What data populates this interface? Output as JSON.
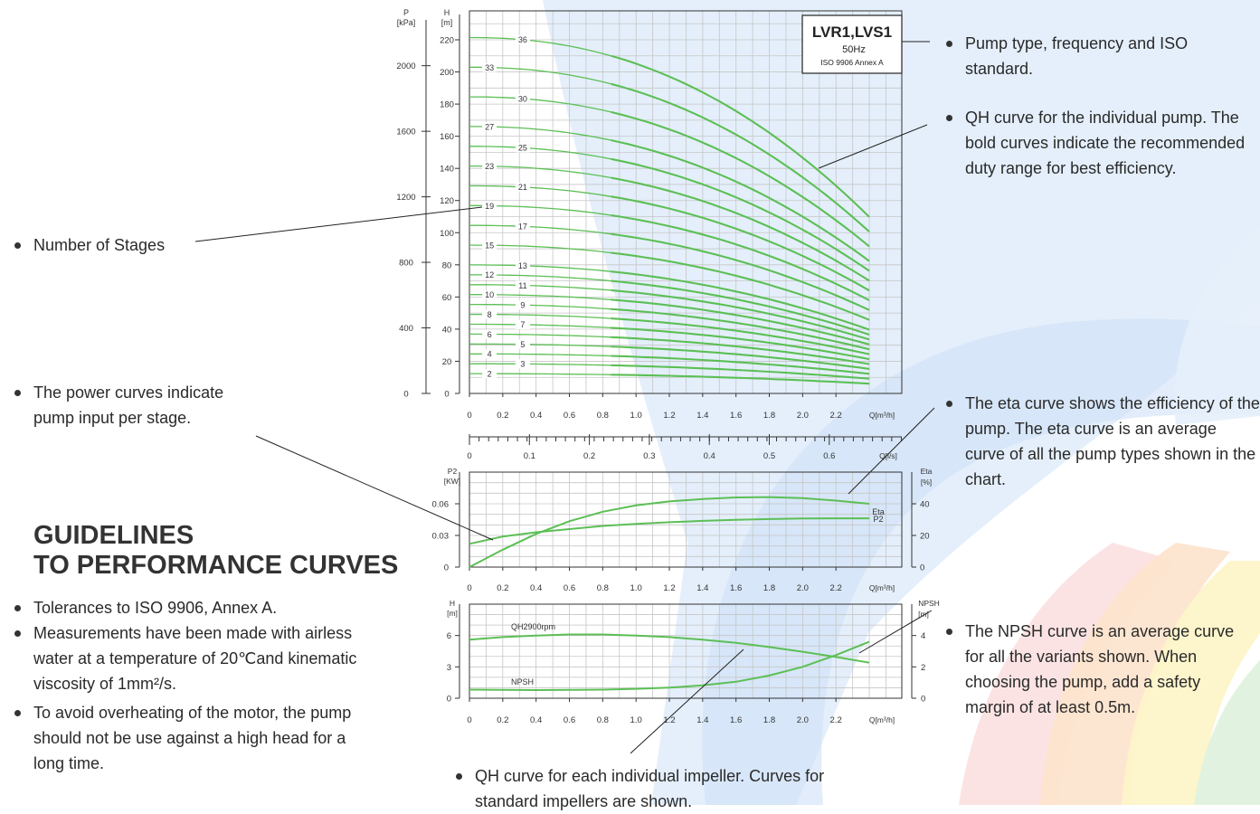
{
  "colors": {
    "curve": "#5cbf55",
    "grid": "#c6c6c6",
    "axis": "#333333",
    "leader": "#222222",
    "bg_blue": "#dbe9fa",
    "bg_orange": "#fde3cc",
    "bg_yellow": "#fdf4c8",
    "bg_green": "#dff2de",
    "bg_pink": "#fbdcdc"
  },
  "chart_data": [
    {
      "type": "line",
      "title": "LVR1,LVS1",
      "subtitle_freq": "50Hz",
      "subtitle_std": "ISO 9906 Annex A",
      "x_label": "Q[m³/h]",
      "x_ticks": [
        "0",
        "0.2",
        "0.4",
        "0.6",
        "0.8",
        "1.0",
        "1.2",
        "1.4",
        "1.6",
        "1.8",
        "2.0",
        "2.2"
      ],
      "xlim": [
        0,
        2.6
      ],
      "y_label_top": "H",
      "y_unit_top": "[m]",
      "y_ticks": [
        "0",
        "20",
        "40",
        "60",
        "80",
        "100",
        "120",
        "140",
        "160",
        "180",
        "200",
        "220"
      ],
      "ylim": [
        0,
        235
      ],
      "p_label": "P",
      "p_unit": "[kPa]",
      "p_ticks": [
        "0",
        "400",
        "800",
        "1200",
        "1600",
        "2000"
      ],
      "secondary_x_ticks": [
        "0",
        "0.1",
        "0.2",
        "0.3",
        "0.4",
        "0.5",
        "0.6"
      ],
      "secondary_x_label": "Q[l/s]",
      "model": {
        "shutoff_head_per_stage": 6.15,
        "q_max": 2.4,
        "head_at_qmax_per_stage": 3.05
      },
      "stages": [
        36,
        33,
        30,
        27,
        25,
        23,
        21,
        19,
        17,
        15,
        13,
        12,
        11,
        10,
        9,
        8,
        7,
        6,
        5,
        4,
        3,
        2
      ],
      "stage_labels": [
        {
          "n": "36",
          "x": 0.32
        },
        {
          "n": "33",
          "x": 0.12
        },
        {
          "n": "30",
          "x": 0.32
        },
        {
          "n": "27",
          "x": 0.12
        },
        {
          "n": "25",
          "x": 0.32
        },
        {
          "n": "23",
          "x": 0.12
        },
        {
          "n": "21",
          "x": 0.32
        },
        {
          "n": "19",
          "x": 0.12
        },
        {
          "n": "17",
          "x": 0.32
        },
        {
          "n": "15",
          "x": 0.12
        },
        {
          "n": "13",
          "x": 0.32
        },
        {
          "n": "12",
          "x": 0.12
        },
        {
          "n": "11",
          "x": 0.32
        },
        {
          "n": "10",
          "x": 0.12
        },
        {
          "n": "9",
          "x": 0.32
        },
        {
          "n": "8",
          "x": 0.12
        },
        {
          "n": "7",
          "x": 0.32
        },
        {
          "n": "6",
          "x": 0.12
        },
        {
          "n": "5",
          "x": 0.32
        },
        {
          "n": "4",
          "x": 0.12
        },
        {
          "n": "3",
          "x": 0.32
        },
        {
          "n": "2",
          "x": 0.12
        }
      ]
    },
    {
      "type": "line",
      "y_label": "P2",
      "y_unit": "[KW]",
      "y_ticks": [
        "0",
        "0.03",
        "0.06"
      ],
      "ylim": [
        0,
        0.09
      ],
      "y2_label": "Eta",
      "y2_unit": "[%]",
      "y2_ticks": [
        "0",
        "20",
        "40"
      ],
      "y2lim": [
        0,
        60
      ],
      "x_ticks": [
        "0",
        "0.2",
        "0.4",
        "0.6",
        "0.8",
        "1.0",
        "1.2",
        "1.4",
        "1.6",
        "1.8",
        "2.0",
        "2.2"
      ],
      "x_label": "Q[m³/h]",
      "xlim": [
        0,
        2.6
      ],
      "series": [
        {
          "name": "Eta",
          "axis": "y2",
          "x": [
            0,
            0.2,
            0.4,
            0.6,
            0.8,
            1.0,
            1.2,
            1.4,
            1.6,
            1.8,
            2.0,
            2.2,
            2.4
          ],
          "y": [
            0,
            11,
            21,
            29,
            35,
            39,
            41.5,
            43,
            44,
            44.2,
            43.6,
            42,
            40
          ]
        },
        {
          "name": "P2",
          "axis": "y",
          "x": [
            0,
            0.2,
            0.4,
            0.6,
            0.8,
            1.0,
            1.2,
            1.4,
            1.6,
            1.8,
            2.0,
            2.2,
            2.4
          ],
          "y": [
            0.022,
            0.029,
            0.033,
            0.036,
            0.039,
            0.041,
            0.0425,
            0.0438,
            0.0448,
            0.0455,
            0.046,
            0.0462,
            0.0462
          ]
        }
      ]
    },
    {
      "type": "line",
      "y_label": "H",
      "y_unit": "[m]",
      "y_ticks": [
        "0",
        "3",
        "6"
      ],
      "ylim": [
        0,
        9
      ],
      "y2_label": "NPSH",
      "y2_unit": "[m]",
      "y2_ticks": [
        "0",
        "2",
        "4"
      ],
      "y2lim": [
        0,
        6
      ],
      "x_ticks": [
        "0",
        "0.2",
        "0.4",
        "0.6",
        "0.8",
        "1.0",
        "1.2",
        "1.4",
        "1.6",
        "1.8",
        "2.0",
        "2.2"
      ],
      "x_label": "Q[m³/h]",
      "xlim": [
        0,
        2.6
      ],
      "series": [
        {
          "name": "QH2900rpm",
          "axis": "y",
          "x": [
            0,
            0.2,
            0.4,
            0.6,
            0.8,
            1.0,
            1.2,
            1.4,
            1.6,
            1.8,
            2.0,
            2.2,
            2.4
          ],
          "y": [
            5.6,
            5.85,
            6.0,
            6.1,
            6.1,
            6.0,
            5.85,
            5.6,
            5.3,
            4.9,
            4.45,
            3.95,
            3.4
          ]
        },
        {
          "name": "NPSH",
          "axis": "y2",
          "x": [
            0,
            0.2,
            0.4,
            0.6,
            0.8,
            1.0,
            1.2,
            1.4,
            1.6,
            1.8,
            2.0,
            2.2,
            2.4
          ],
          "y": [
            0.55,
            0.53,
            0.52,
            0.53,
            0.55,
            0.6,
            0.68,
            0.82,
            1.05,
            1.45,
            2.0,
            2.75,
            3.6
          ]
        }
      ]
    }
  ],
  "annotations": {
    "pump_type": "Pump type, frequency and ISO standard.",
    "qh_curve": "QH curve for the individual pump. The bold curves indicate the recommended duty range for best efficiency.",
    "stages": "Number of Stages",
    "power": "The power curves indicate pump input per stage.",
    "eta": "The eta curve shows the efficiency of the pump. The eta curve is an average curve of all the pump types shown in the chart.",
    "npsh": "The NPSH curve is an average curve for all the variants shown. When choosing the pump, add a safety margin of at least 0.5m.",
    "impeller": "QH curve for each individual impeller. Curves for standard impellers are shown."
  },
  "guidelines": {
    "title_line1": "GUIDELINES",
    "title_line2": "TO PERFORMANCE CURVES",
    "items": [
      "Tolerances to ISO 9906, Annex A.",
      "Measurements have been made with airless water at a temperature of 20℃and kinematic viscosity of 1mm²/s.",
      "To avoid overheating of the motor, the pump should not be use against a high head for a long time."
    ]
  }
}
